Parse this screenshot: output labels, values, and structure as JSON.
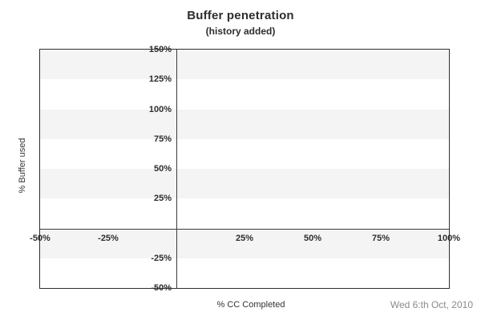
{
  "header": {
    "title": "Buffer penetration",
    "subtitle": "(history added)"
  },
  "footer": {
    "date_label": "Wed 6:th Oct, 2010"
  },
  "colors": {
    "background": "#ffffff",
    "band_gray": "#f4f4f4",
    "band_white": "#ffffff",
    "axis_line": "#3c3c3c",
    "plot_border": "#2f2f2f",
    "tick_text": "#2d2d2d",
    "date_text": "#8a8a8a"
  },
  "chart_data": {
    "type": "line",
    "title": "Buffer penetration",
    "subtitle": "(history added)",
    "xlabel": "% CC Completed",
    "ylabel": "% Buffer used",
    "xlim": [
      -50,
      100
    ],
    "ylim": [
      -50,
      150
    ],
    "x_ticks": [
      {
        "v": -50,
        "label": "-50%"
      },
      {
        "v": -25,
        "label": "-25%"
      },
      {
        "v": 25,
        "label": "25%"
      },
      {
        "v": 50,
        "label": "50%"
      },
      {
        "v": 75,
        "label": "75%"
      },
      {
        "v": 100,
        "label": "100%"
      }
    ],
    "y_ticks": [
      {
        "v": 150,
        "label": "150%"
      },
      {
        "v": 125,
        "label": "125%"
      },
      {
        "v": 100,
        "label": "100%"
      },
      {
        "v": 75,
        "label": "75%"
      },
      {
        "v": 50,
        "label": "50%"
      },
      {
        "v": 25,
        "label": "25%"
      },
      {
        "v": -25,
        "label": "-25%"
      },
      {
        "v": -50,
        "label": "-50%"
      }
    ],
    "grid_bands": {
      "step": 25,
      "first_color": "#f4f4f4",
      "second_color": "#ffffff"
    },
    "zero_lines": {
      "x": 0,
      "y": 0
    },
    "series": [],
    "legend": null,
    "footnote": "Wed 6:th Oct, 2010"
  }
}
